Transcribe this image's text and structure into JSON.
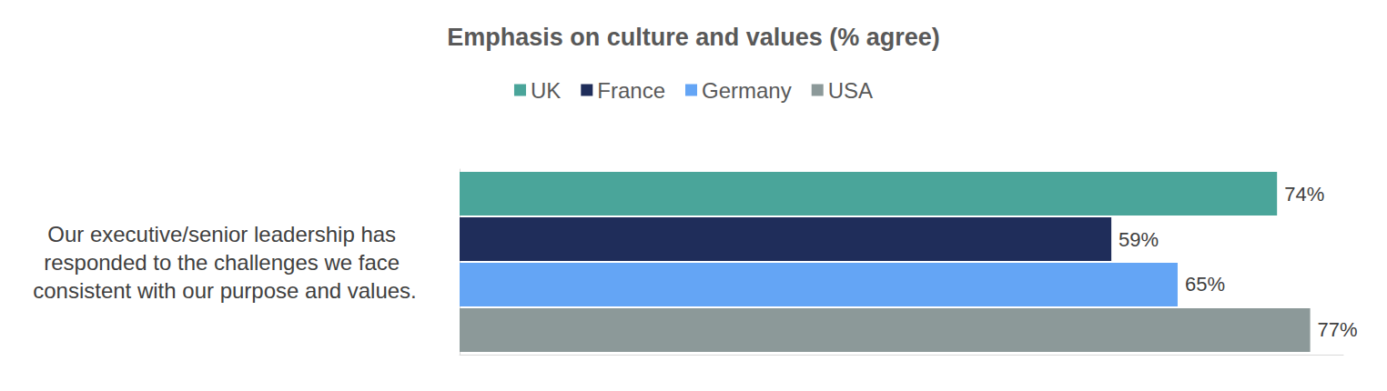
{
  "chart_data": {
    "type": "bar",
    "title": "Emphasis on culture and values (% agree)",
    "orientation": "horizontal",
    "categories": [
      "Our executive/senior leadership has responded to the challenges we face consistent with our purpose and values."
    ],
    "series": [
      {
        "name": "UK",
        "color": "#4aa59a",
        "values": [
          74
        ],
        "value_labels": [
          "74%"
        ]
      },
      {
        "name": "France",
        "color": "#1f2d5a",
        "values": [
          59
        ],
        "value_labels": [
          "59%"
        ]
      },
      {
        "name": "Germany",
        "color": "#64a5f5",
        "values": [
          65
        ],
        "value_labels": [
          "65%"
        ]
      },
      {
        "name": "USA",
        "color": "#8c9999",
        "values": [
          77
        ],
        "value_labels": [
          "77%"
        ]
      }
    ],
    "xlim": [
      0,
      80
    ],
    "tick_labels": "y",
    "data_labels": true,
    "grid": false,
    "legend": "top"
  }
}
